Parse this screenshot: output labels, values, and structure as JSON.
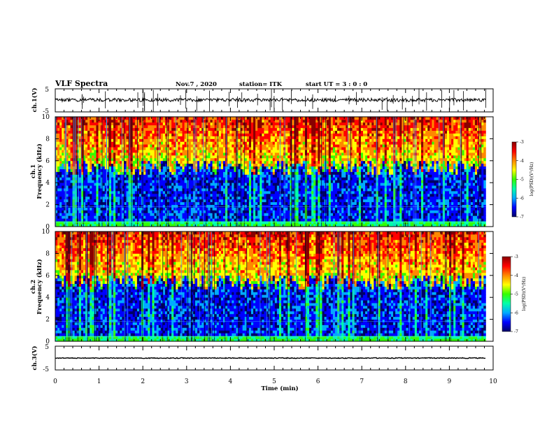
{
  "header": {
    "title": "VLF Spectra",
    "date": "Nov.7 , 2020",
    "station": "station= ITK",
    "start": "start UT =  3 : 0 : 0"
  },
  "chart_data": {
    "type": "heatmap",
    "x_axis": {
      "label": "Time (min)",
      "range": [
        0,
        10
      ],
      "ticks": [
        "0",
        "1",
        "2",
        "3",
        "4",
        "5",
        "6",
        "7",
        "8",
        "9",
        "10"
      ]
    },
    "panels": [
      {
        "id": "ch1-wave",
        "ylabel": "ch.1(V)",
        "range": [
          -5,
          5
        ],
        "tick_labels": [
          "5",
          "-5"
        ]
      },
      {
        "id": "ch1-spec",
        "ylabel_line1": "ch.1",
        "ylabel_line2": "Frequency (kHz)",
        "range": [
          0,
          10
        ],
        "tick_labels": [
          "0",
          "2",
          "4",
          "6",
          "8",
          "10"
        ]
      },
      {
        "id": "ch2-spec",
        "ylabel_line1": "ch.2",
        "ylabel_line2": "Frequency (kHz)",
        "range": [
          0,
          10
        ],
        "tick_labels": [
          "0",
          "2",
          "4",
          "6",
          "8",
          "10"
        ]
      },
      {
        "id": "ch3-wave",
        "ylabel": "ch.3(V)",
        "range": [
          -5,
          5
        ],
        "tick_labels": [
          "5",
          "-5"
        ]
      }
    ],
    "colorbar": {
      "label": "log(PSD)(V²/Hz)",
      "range": [
        -7,
        -3
      ],
      "tick_labels": [
        "-3",
        "-4",
        "-5",
        "-6",
        "-7"
      ],
      "colors": [
        "#000066",
        "#0000ff",
        "#00aaff",
        "#00ffaa",
        "#33ff00",
        "#ffff00",
        "#ff8800",
        "#ff0000",
        "#880000"
      ]
    },
    "data_span_min": 9.83
  }
}
